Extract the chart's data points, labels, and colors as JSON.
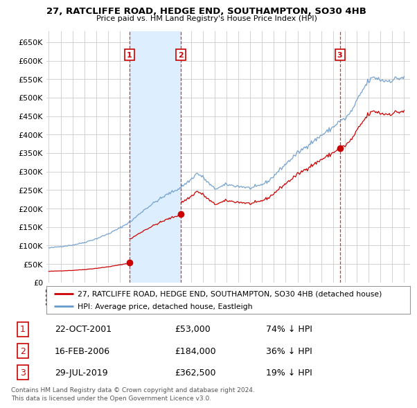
{
  "title": "27, RATCLIFFE ROAD, HEDGE END, SOUTHAMPTON, SO30 4HB",
  "subtitle": "Price paid vs. HM Land Registry's House Price Index (HPI)",
  "transactions": [
    {
      "num": 1,
      "date_label": "22-OCT-2001",
      "date_x": 2001.81,
      "price": 53000,
      "pct": "74% ↓ HPI"
    },
    {
      "num": 2,
      "date_label": "16-FEB-2006",
      "date_x": 2006.12,
      "price": 184000,
      "pct": "36% ↓ HPI"
    },
    {
      "num": 3,
      "date_label": "29-JUL-2019",
      "date_x": 2019.57,
      "price": 362500,
      "pct": "19% ↓ HPI"
    }
  ],
  "legend_property": "27, RATCLIFFE ROAD, HEDGE END, SOUTHAMPTON, SO30 4HB (detached house)",
  "legend_hpi": "HPI: Average price, detached house, Eastleigh",
  "footnote1": "Contains HM Land Registry data © Crown copyright and database right 2024.",
  "footnote2": "This data is licensed under the Open Government Licence v3.0.",
  "property_color": "#cc0000",
  "hpi_color": "#6699cc",
  "shade_color": "#ddeeff",
  "ylim_max": 680000,
  "ylim_min": 0,
  "xlim_min": 1995,
  "xlim_max": 2025.5,
  "yticks": [
    0,
    50000,
    100000,
    150000,
    200000,
    250000,
    300000,
    350000,
    400000,
    450000,
    500000,
    550000,
    600000,
    650000
  ],
  "ytick_labels": [
    "£0",
    "£50K",
    "£100K",
    "£150K",
    "£200K",
    "£250K",
    "£300K",
    "£350K",
    "£400K",
    "£450K",
    "£500K",
    "£550K",
    "£600K",
    "£650K"
  ],
  "xticks": [
    1995,
    1996,
    1997,
    1998,
    1999,
    2000,
    2001,
    2002,
    2003,
    2004,
    2005,
    2006,
    2007,
    2008,
    2009,
    2010,
    2011,
    2012,
    2013,
    2014,
    2015,
    2016,
    2017,
    2018,
    2019,
    2020,
    2021,
    2022,
    2023,
    2024,
    2025
  ],
  "background_color": "#ffffff",
  "grid_color": "#cccccc"
}
